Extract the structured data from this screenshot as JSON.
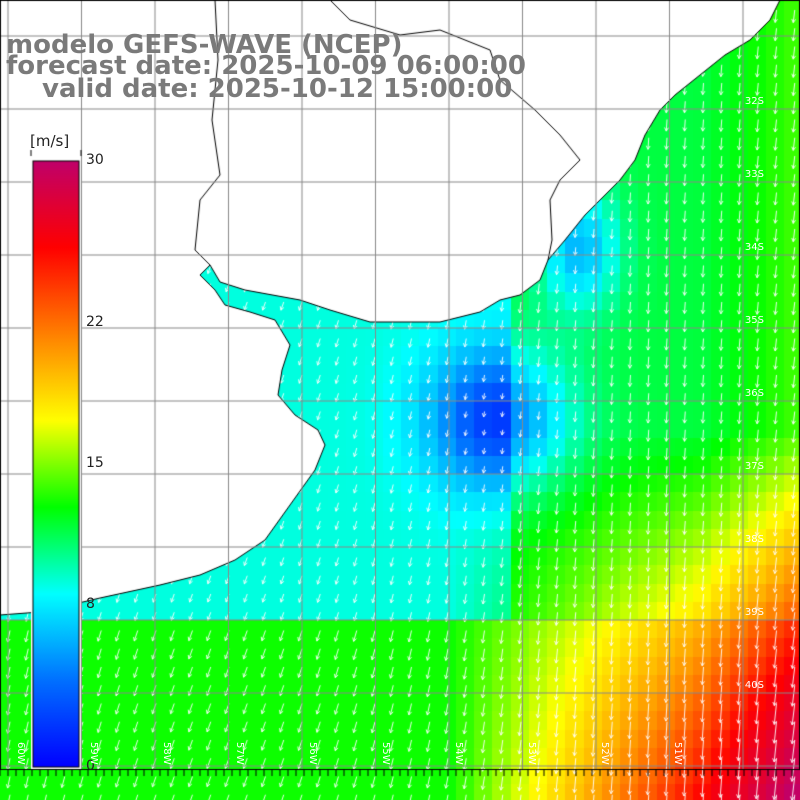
{
  "title": {
    "line1": "modelo GEFS-WAVE (NCEP)",
    "line2": "forecast date: 2025-10-09 06:00:00",
    "line3": "valid date: 2025-10-12 15:00:00"
  },
  "colorbar": {
    "unit": "[m/s]",
    "min": 0,
    "max": 30,
    "ticks": [
      {
        "label": "30",
        "value": 30
      },
      {
        "label": "22",
        "value": 22
      },
      {
        "label": "15",
        "value": 15
      },
      {
        "label": "8",
        "value": 8
      },
      {
        "label": "0",
        "value": 0
      }
    ],
    "colors": [
      "#0000ff",
      "#0070ff",
      "#00ffff",
      "#00ff00",
      "#ffff00",
      "#ff8000",
      "#ff0000",
      "#c0006a"
    ]
  },
  "lat_labels": [
    "32S",
    "33S",
    "34S",
    "35S",
    "36S",
    "37S",
    "38S",
    "39S",
    "40S"
  ],
  "lon_labels": [
    "60W",
    "59W",
    "58W",
    "57W",
    "56W",
    "55W",
    "54W",
    "53W",
    "52W",
    "51W"
  ],
  "colors": {
    "land": "#ffffff",
    "grid": "#888888",
    "coast": "#000000",
    "arrow": "#ffffff",
    "title_text": "#7a7a7a"
  }
}
